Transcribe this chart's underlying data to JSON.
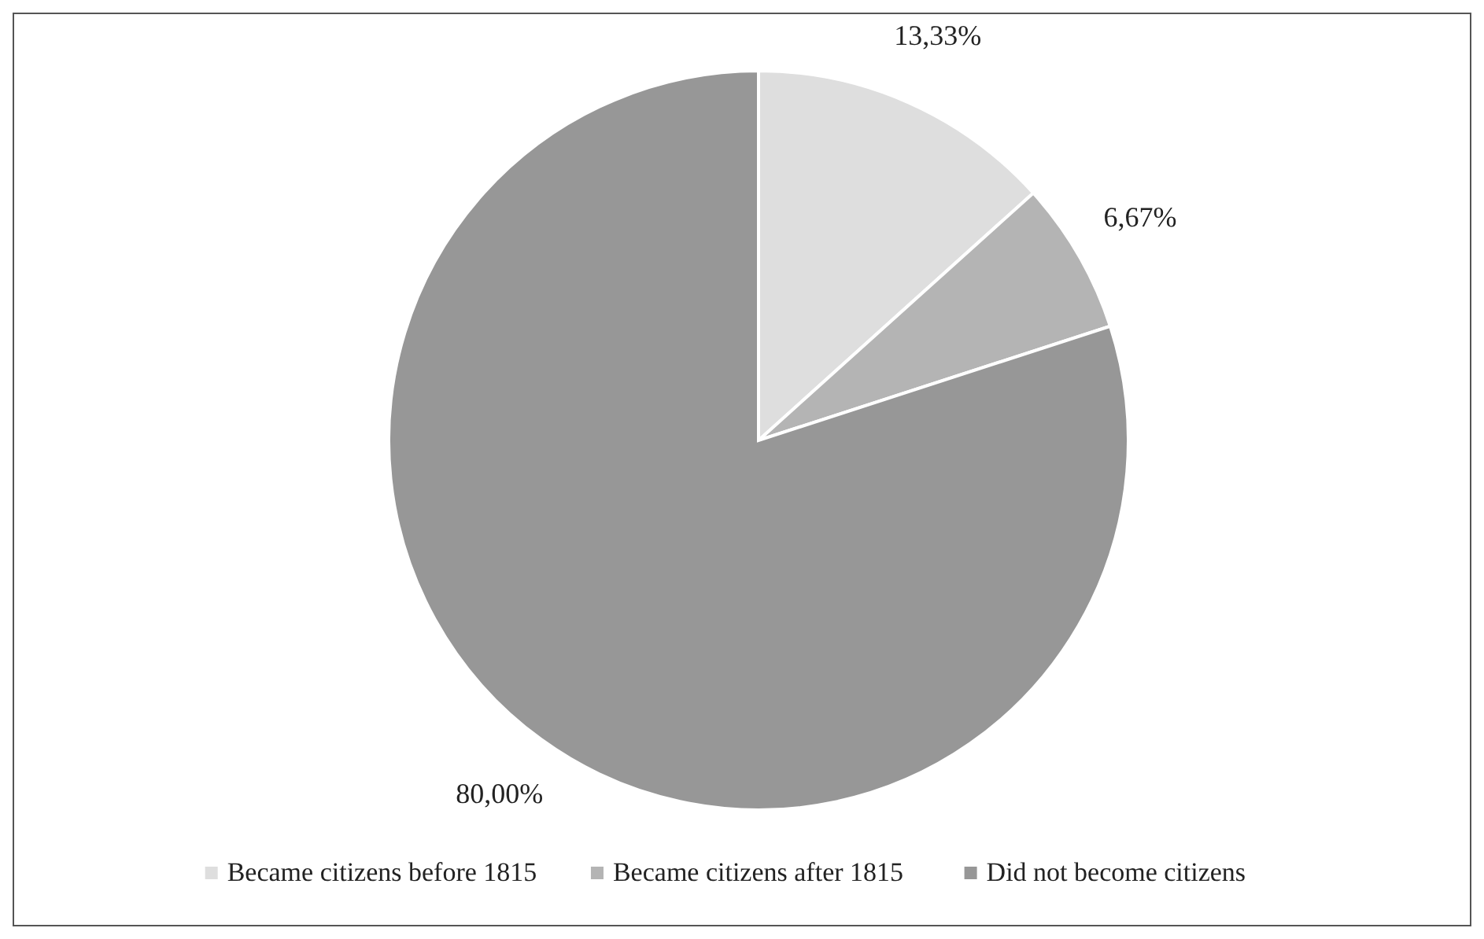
{
  "chart_data": {
    "type": "pie",
    "categories": [
      "Became citizens before 1815",
      "Became citizens after 1815",
      "Did not become citizens"
    ],
    "values": [
      13.33,
      6.67,
      80
    ],
    "colors": [
      "#dedede",
      "#b4b4b4",
      "#979797"
    ],
    "value_labels": [
      "13,33%",
      "6,67%",
      "80,00%"
    ],
    "legend": "bottom"
  }
}
